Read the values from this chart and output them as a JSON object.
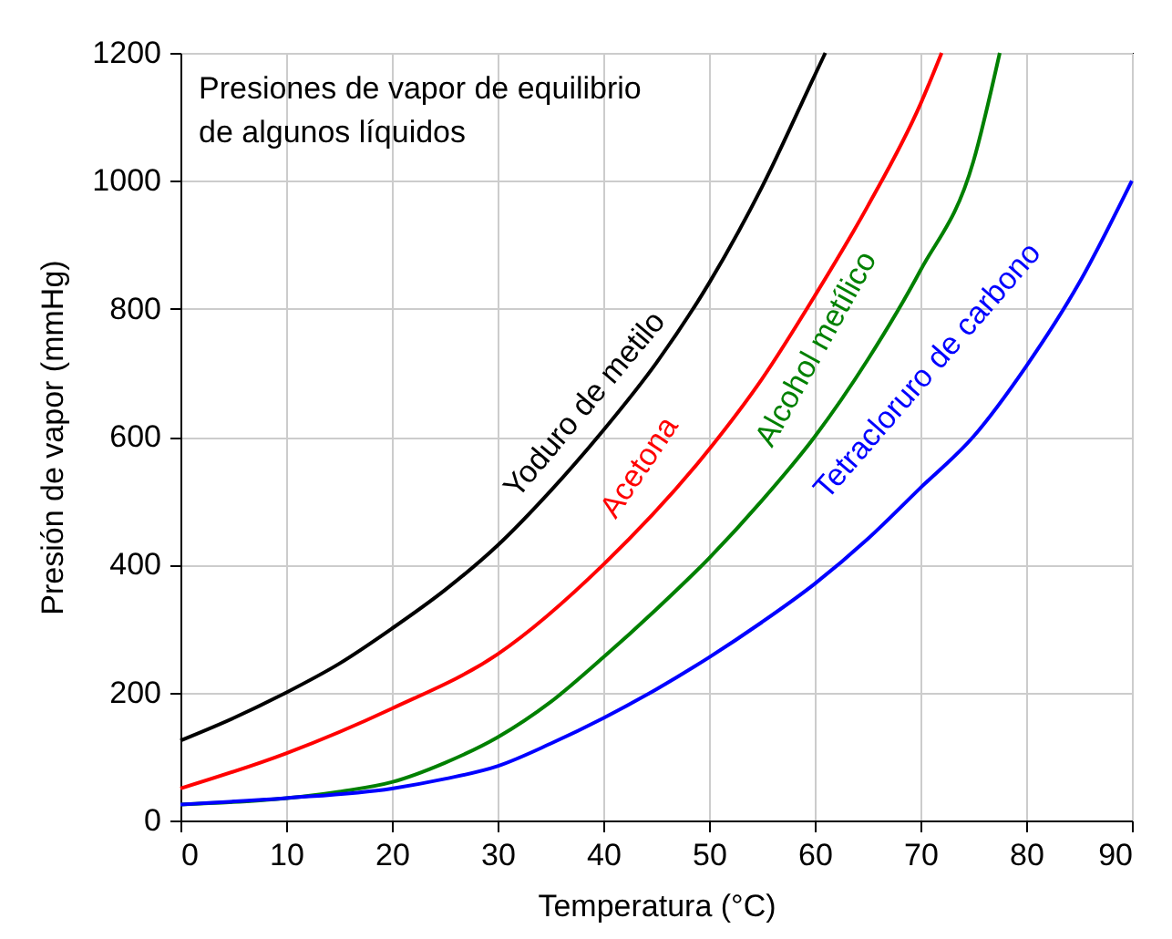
{
  "chart_data": {
    "type": "line",
    "title": "Presiones de vapor de equilibrio de algunos líquidos",
    "xlabel": "Temperatura (°C)",
    "ylabel": "Presión de vapor (mmHg)",
    "xlim": [
      0,
      90
    ],
    "xticks": [
      0,
      10,
      20,
      30,
      40,
      50,
      60,
      70,
      80,
      90
    ],
    "ylim": [
      0,
      1200
    ],
    "yticks": [
      0,
      200,
      400,
      600,
      800,
      1000,
      1200
    ],
    "grid": true,
    "legend": false,
    "marker": "none",
    "line_style": "solid",
    "series": [
      {
        "name": "Yoduro de metilo",
        "color": "#000000",
        "x": [
          0,
          5,
          10,
          15,
          20,
          25,
          30,
          35,
          40,
          45,
          50,
          55,
          60,
          61
        ],
        "values": [
          125,
          160,
          200,
          245,
          300,
          360,
          430,
          515,
          610,
          715,
          840,
          990,
          1165,
          1200
        ]
      },
      {
        "name": "Acetona",
        "color": "#ff0000",
        "x": [
          0,
          10,
          20,
          30,
          40,
          50,
          55,
          60,
          65,
          70,
          72
        ],
        "values": [
          50,
          105,
          175,
          260,
          400,
          580,
          690,
          820,
          960,
          1120,
          1200
        ]
      },
      {
        "name": "Alcohol metílico",
        "color": "#008000",
        "x": [
          0,
          15,
          20,
          25,
          30,
          35,
          40,
          45,
          50,
          55,
          60,
          65,
          70,
          75,
          77.5
        ],
        "values": [
          25,
          45,
          60,
          90,
          130,
          185,
          255,
          330,
          410,
          500,
          600,
          720,
          860,
          1030,
          1200
        ]
      },
      {
        "name": "Tetracloruro de carbono",
        "color": "#0000ff",
        "x": [
          0,
          10,
          20,
          25,
          30,
          35,
          40,
          45,
          50,
          55,
          60,
          65,
          70,
          75,
          80,
          85,
          90
        ],
        "values": [
          25,
          35,
          50,
          65,
          85,
          120,
          160,
          205,
          255,
          310,
          370,
          440,
          520,
          600,
          710,
          840,
          1000
        ]
      }
    ]
  }
}
